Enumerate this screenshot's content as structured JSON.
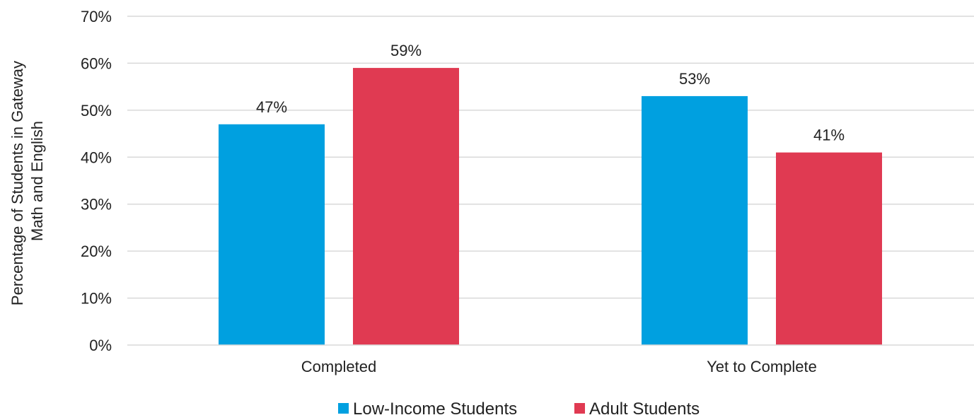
{
  "chart_data": {
    "type": "bar",
    "categories": [
      "Completed",
      "Yet to Complete"
    ],
    "series": [
      {
        "name": "Low-Income Students",
        "values": [
          47,
          53
        ],
        "color": "#00A0E0"
      },
      {
        "name": "Adult Students",
        "values": [
          59,
          41
        ],
        "color": "#E03A52"
      }
    ],
    "data_labels": [
      [
        "47%",
        "53%"
      ],
      [
        "59%",
        "41%"
      ]
    ],
    "ylabel_lines": [
      "Percentage of Students in Gateway",
      "Math and English"
    ],
    "yticks": [
      "0%",
      "10%",
      "20%",
      "30%",
      "40%",
      "50%",
      "60%",
      "70%"
    ],
    "ylim": [
      0,
      70
    ],
    "y_tick_step": 10,
    "grid": true,
    "legend_position": "bottom"
  }
}
